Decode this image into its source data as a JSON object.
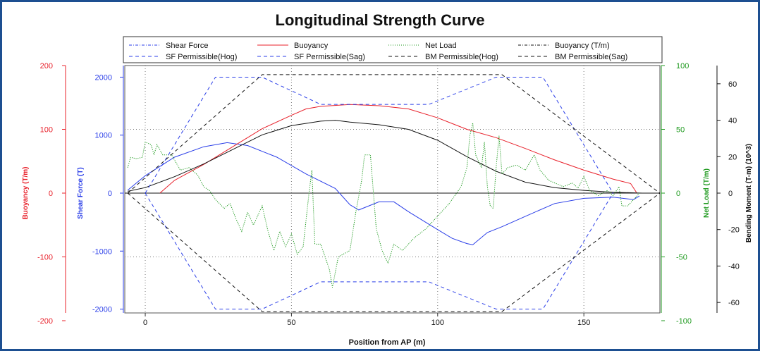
{
  "chart_data": {
    "type": "line",
    "title": "Longitudinal Strength Curve",
    "xlabel": "Position from AP (m)",
    "xlim": [
      -7,
      176
    ],
    "xticks": [
      0,
      50,
      100,
      150
    ],
    "legend_position": "top",
    "grid": true,
    "axes": {
      "buoyancy": {
        "label": "Buoyancy (T/m)",
        "color": "#e8202a",
        "ylim": [
          -200,
          200
        ],
        "ticks": [
          -200,
          -100,
          0,
          100,
          200
        ]
      },
      "shear": {
        "label": "Shear Force (T)",
        "color": "#2a3ee8",
        "ylim": [
          -2200,
          2200
        ],
        "ticks": [
          -2000,
          -1000,
          0,
          1000,
          2000
        ]
      },
      "netload": {
        "label": "Net Load (T/m)",
        "color": "#1f9a1f",
        "ylim": [
          -100,
          100
        ],
        "ticks": [
          -100,
          -50,
          0,
          50,
          100
        ]
      },
      "bending": {
        "label": "Bending Moment (T-m) (10^3)",
        "color": "#111111",
        "ylim": [
          -70,
          70
        ],
        "ticks": [
          -60,
          -40,
          -20,
          0,
          20,
          40,
          60
        ]
      }
    },
    "legend": [
      {
        "name": "Shear Force",
        "color": "#2a3ee8",
        "dash": "dashdot"
      },
      {
        "name": "Buoyancy",
        "color": "#e8202a",
        "dash": "solid"
      },
      {
        "name": "Net Load",
        "color": "#1f9a1f",
        "dash": "dotted"
      },
      {
        "name": "Buoyancy (T/m)",
        "color": "#111111",
        "dash": "dashdot"
      },
      {
        "name": "SF Permissible(Hog)",
        "color": "#2a3ee8",
        "dash": "dashed"
      },
      {
        "name": "SF Permissible(Sag)",
        "color": "#2a3ee8",
        "dash": "dashed"
      },
      {
        "name": "BM Permissible(Hog)",
        "color": "#111111",
        "dash": "dashed"
      },
      {
        "name": "BM Permissible(Sag)",
        "color": "#111111",
        "dash": "dashed"
      }
    ],
    "series": [
      {
        "name": "Shear Force",
        "axis": "shear",
        "color": "#2a3ee8",
        "dash": "",
        "points": [
          [
            -6,
            50
          ],
          [
            0,
            300
          ],
          [
            10,
            620
          ],
          [
            20,
            800
          ],
          [
            28,
            870
          ],
          [
            35,
            820
          ],
          [
            45,
            620
          ],
          [
            55,
            330
          ],
          [
            65,
            80
          ],
          [
            70,
            -200
          ],
          [
            73,
            -290
          ],
          [
            80,
            -150
          ],
          [
            85,
            -150
          ],
          [
            90,
            -320
          ],
          [
            100,
            -630
          ],
          [
            105,
            -780
          ],
          [
            110,
            -870
          ],
          [
            112,
            -890
          ],
          [
            117,
            -680
          ],
          [
            122,
            -580
          ],
          [
            130,
            -400
          ],
          [
            140,
            -180
          ],
          [
            150,
            -90
          ],
          [
            160,
            -70
          ],
          [
            167,
            -110
          ],
          [
            169,
            -50
          ]
        ]
      },
      {
        "name": "Buoyancy",
        "axis": "buoyancy",
        "color": "#e8202a",
        "dash": "",
        "points": [
          [
            5,
            0
          ],
          [
            10,
            20
          ],
          [
            20,
            45
          ],
          [
            30,
            73
          ],
          [
            40,
            101
          ],
          [
            50,
            122
          ],
          [
            55,
            132
          ],
          [
            60,
            136
          ],
          [
            70,
            139
          ],
          [
            80,
            137
          ],
          [
            90,
            132
          ],
          [
            100,
            118
          ],
          [
            110,
            100
          ],
          [
            120,
            87
          ],
          [
            130,
            70
          ],
          [
            140,
            52
          ],
          [
            150,
            36
          ],
          [
            160,
            22
          ],
          [
            166,
            15
          ],
          [
            168,
            1
          ]
        ]
      },
      {
        "name": "Buoyancy (T/m)",
        "axis": "bending",
        "color": "#111111",
        "dash": "",
        "points": [
          [
            -6,
            1
          ],
          [
            0,
            3
          ],
          [
            10,
            9
          ],
          [
            20,
            16
          ],
          [
            30,
            24
          ],
          [
            40,
            32
          ],
          [
            50,
            37
          ],
          [
            60,
            39.5
          ],
          [
            65,
            40
          ],
          [
            70,
            39
          ],
          [
            80,
            37.5
          ],
          [
            90,
            35
          ],
          [
            100,
            29
          ],
          [
            110,
            20
          ],
          [
            120,
            12
          ],
          [
            130,
            6
          ],
          [
            140,
            3
          ],
          [
            150,
            1.5
          ],
          [
            160,
            0.5
          ],
          [
            170,
            0
          ]
        ]
      },
      {
        "name": "Net Load",
        "axis": "netload",
        "color": "#1f9a1f",
        "dash": "1.2 1.6",
        "points": [
          [
            -6,
            20
          ],
          [
            -5,
            28
          ],
          [
            -3,
            27
          ],
          [
            -1,
            28
          ],
          [
            0,
            40
          ],
          [
            2,
            38
          ],
          [
            3,
            30
          ],
          [
            4,
            38
          ],
          [
            6,
            30
          ],
          [
            9,
            30
          ],
          [
            12,
            18
          ],
          [
            15,
            20
          ],
          [
            18,
            14
          ],
          [
            20,
            5
          ],
          [
            22,
            2
          ],
          [
            24,
            -5
          ],
          [
            27,
            -12
          ],
          [
            29,
            -8
          ],
          [
            31,
            -20
          ],
          [
            33,
            -30
          ],
          [
            35,
            -15
          ],
          [
            37,
            -25
          ],
          [
            40,
            -10
          ],
          [
            42,
            -30
          ],
          [
            44,
            -45
          ],
          [
            46,
            -30
          ],
          [
            48,
            -42
          ],
          [
            50,
            -32
          ],
          [
            52,
            -48
          ],
          [
            54,
            -42
          ],
          [
            56,
            0
          ],
          [
            57,
            18
          ],
          [
            58,
            -40
          ],
          [
            60,
            -40
          ],
          [
            63,
            -60
          ],
          [
            64,
            -74
          ],
          [
            66,
            -50
          ],
          [
            70,
            -45
          ],
          [
            72,
            -15
          ],
          [
            74,
            10
          ],
          [
            75,
            30
          ],
          [
            77,
            30
          ],
          [
            79,
            -28
          ],
          [
            81,
            -45
          ],
          [
            83,
            -55
          ],
          [
            85,
            -40
          ],
          [
            88,
            -45
          ],
          [
            92,
            -35
          ],
          [
            96,
            -28
          ],
          [
            100,
            -18
          ],
          [
            104,
            -8
          ],
          [
            108,
            5
          ],
          [
            110,
            20
          ],
          [
            111,
            45
          ],
          [
            112,
            55
          ],
          [
            113,
            30
          ],
          [
            115,
            20
          ],
          [
            116,
            40
          ],
          [
            117,
            5
          ],
          [
            118,
            -10
          ],
          [
            119,
            -12
          ],
          [
            120,
            20
          ],
          [
            121,
            45
          ],
          [
            122,
            15
          ],
          [
            124,
            20
          ],
          [
            127,
            22
          ],
          [
            130,
            18
          ],
          [
            133,
            30
          ],
          [
            135,
            18
          ],
          [
            138,
            10
          ],
          [
            141,
            7
          ],
          [
            143,
            5
          ],
          [
            146,
            8
          ],
          [
            148,
            4
          ],
          [
            150,
            13
          ],
          [
            152,
            2
          ],
          [
            155,
            -2
          ],
          [
            158,
            2
          ],
          [
            160,
            -2
          ],
          [
            162,
            5
          ],
          [
            163,
            -10
          ],
          [
            165,
            -10
          ],
          [
            167,
            -5
          ],
          [
            169,
            0
          ]
        ]
      },
      {
        "name": "SF Permissible(Hog)",
        "axis": "shear",
        "color": "#2a3ee8",
        "dash": "5 4",
        "points": [
          [
            0,
            0
          ],
          [
            24,
            2000
          ],
          [
            40,
            2000
          ],
          [
            60,
            1530
          ],
          [
            97,
            1530
          ],
          [
            120,
            2000
          ],
          [
            136,
            2000
          ],
          [
            160,
            0
          ]
        ]
      },
      {
        "name": "SF Permissible(Sag)",
        "axis": "shear",
        "color": "#2a3ee8",
        "dash": "5 4",
        "points": [
          [
            0,
            0
          ],
          [
            24,
            -2000
          ],
          [
            40,
            -2000
          ],
          [
            60,
            -1530
          ],
          [
            97,
            -1530
          ],
          [
            120,
            -2000
          ],
          [
            136,
            -2000
          ],
          [
            160,
            0
          ]
        ]
      },
      {
        "name": "BM Permissible(Hog)",
        "axis": "bending",
        "color": "#111111",
        "dash": "5 4",
        "points": [
          [
            -6,
            0
          ],
          [
            40,
            65
          ],
          [
            122,
            65
          ],
          [
            176,
            0
          ]
        ]
      },
      {
        "name": "BM Permissible(Sag)",
        "axis": "bending",
        "color": "#111111",
        "dash": "5 4",
        "points": [
          [
            -6,
            0
          ],
          [
            40,
            -65
          ],
          [
            122,
            -65
          ],
          [
            176,
            0
          ]
        ]
      }
    ]
  }
}
